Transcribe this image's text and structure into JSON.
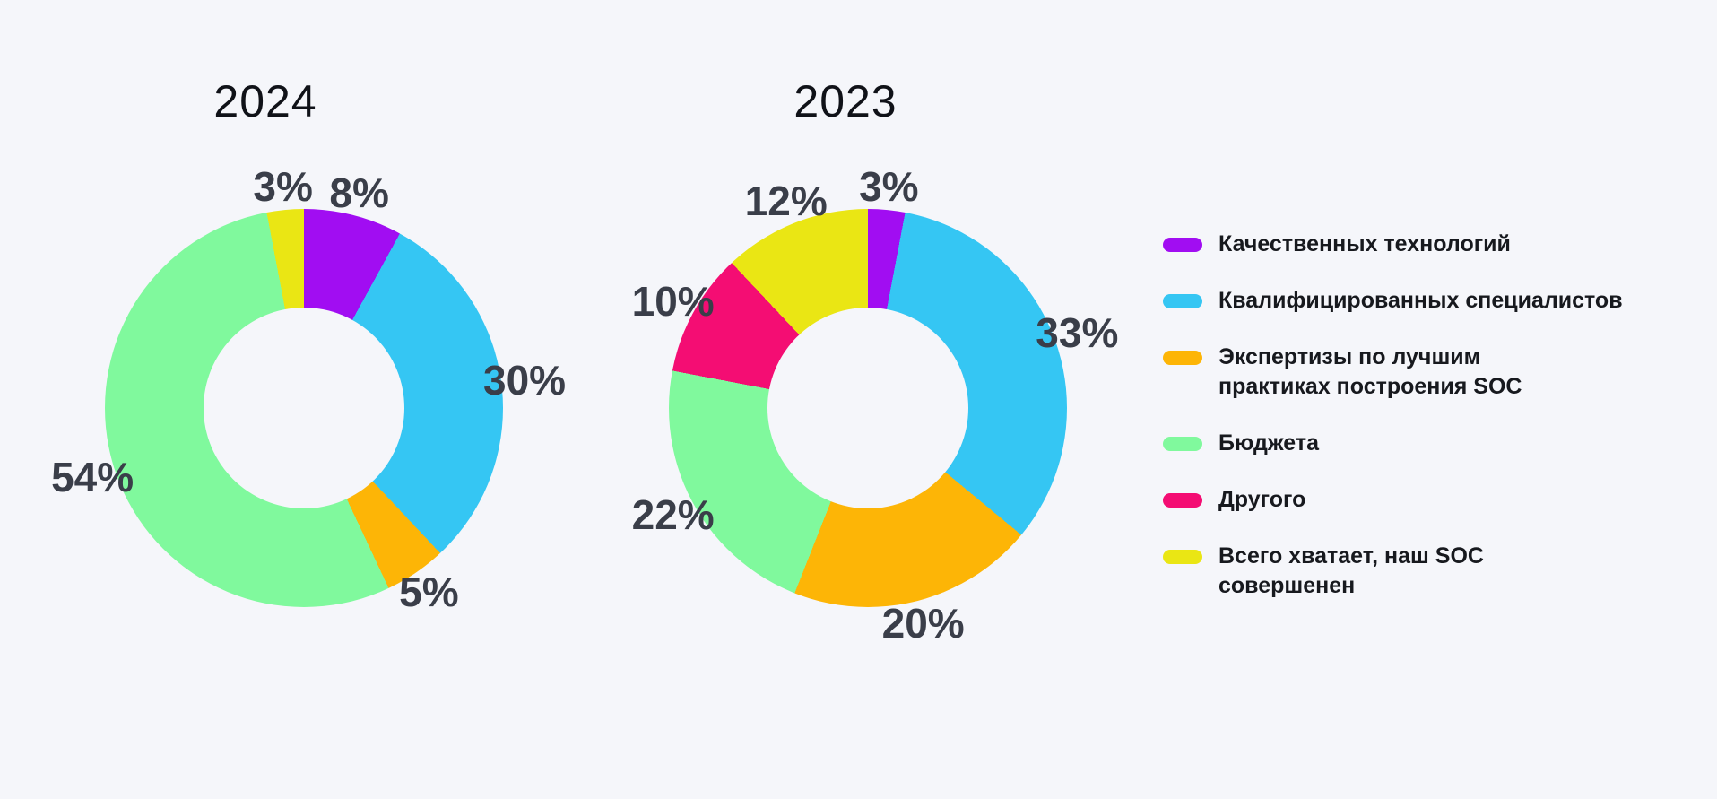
{
  "background_color": "#F5F6FA",
  "title_color": "#101218",
  "label_color": "#3A3E49",
  "legend_text_color": "#17191E",
  "charts": [
    {
      "title": "2024",
      "slices": [
        {
          "category": "Качественных технологий",
          "value": 8,
          "label": "8%",
          "color": "#A10DF2"
        },
        {
          "category": "Квалифицированных специалистов",
          "value": 30,
          "label": "30%",
          "color": "#35C6F3"
        },
        {
          "category": "Экспертизы по лучшим практиках построения SOC",
          "value": 5,
          "label": "5%",
          "color": "#FDB506"
        },
        {
          "category": "Бюджета",
          "value": 54,
          "label": "54%",
          "color": "#80F99D"
        },
        {
          "category": "Всего хватает, наш SOC совершенен",
          "value": 3,
          "label": "3%",
          "color": "#EAE614"
        }
      ]
    },
    {
      "title": "2023",
      "slices": [
        {
          "category": "Качественных технологий",
          "value": 3,
          "label": "3%",
          "color": "#A10DF2"
        },
        {
          "category": "Квалифицированных специалистов",
          "value": 33,
          "label": "33%",
          "color": "#35C6F3"
        },
        {
          "category": "Экспертизы по лучшим практиках построения SOC",
          "value": 20,
          "label": "20%",
          "color": "#FDB506"
        },
        {
          "category": "Бюджета",
          "value": 22,
          "label": "22%",
          "color": "#80F99D"
        },
        {
          "category": "Другого",
          "value": 10,
          "label": "10%",
          "color": "#F40D73"
        },
        {
          "category": "Всего хватает, наш SOC совершенен",
          "value": 12,
          "label": "12%",
          "color": "#EAE614"
        }
      ]
    }
  ],
  "legend": {
    "items": [
      {
        "label": "Качественных технологий",
        "color": "#A10DF2"
      },
      {
        "label": "Квалифицированных специалистов",
        "color": "#35C6F3"
      },
      {
        "label": "Экспертизы по лучшим\nпрактиках построения SOC",
        "color": "#FDB506"
      },
      {
        "label": "Бюджета",
        "color": "#80F99D"
      },
      {
        "label": "Другого",
        "color": "#F40D73"
      },
      {
        "label": "Всего хватает, наш SOC\nсовершенен",
        "color": "#EAE614"
      }
    ]
  },
  "chart_data": [
    {
      "type": "pie",
      "donut": true,
      "title": "2024",
      "labels": [
        "Качественных технологий",
        "Квалифицированных специалистов",
        "Экспертизы по лучшим практиках построения SOC",
        "Бюджета",
        "Другого",
        "Всего хватает, наш SOC совершенен"
      ],
      "values": [
        8,
        30,
        5,
        54,
        0,
        3
      ],
      "unit": "%",
      "colors": [
        "#A10DF2",
        "#35C6F3",
        "#FDB506",
        "#80F99D",
        "#F40D73",
        "#EAE614"
      ],
      "start_angle_deg": 0,
      "direction": "clockwise",
      "legend_position": "right"
    },
    {
      "type": "pie",
      "donut": true,
      "title": "2023",
      "labels": [
        "Качественных технологий",
        "Квалифицированных специалистов",
        "Экспертизы по лучшим практиках построения SOC",
        "Бюджета",
        "Другого",
        "Всего хватает, наш SOC совершенен"
      ],
      "values": [
        3,
        33,
        20,
        22,
        10,
        12
      ],
      "unit": "%",
      "colors": [
        "#A10DF2",
        "#35C6F3",
        "#FDB506",
        "#80F99D",
        "#F40D73",
        "#EAE614"
      ],
      "start_angle_deg": 0,
      "direction": "clockwise",
      "legend_position": "right"
    }
  ]
}
